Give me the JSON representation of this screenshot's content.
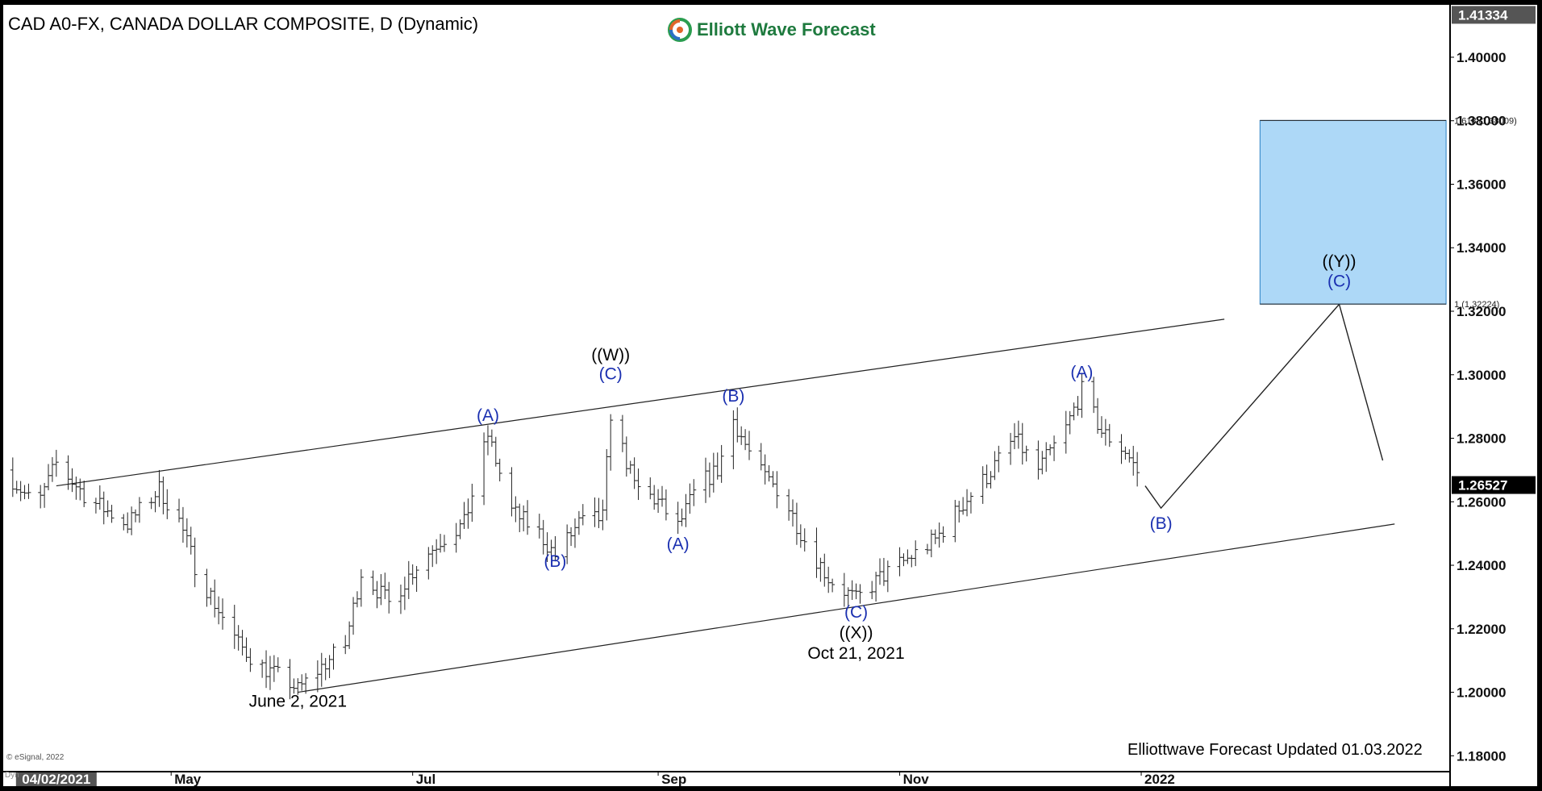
{
  "header": {
    "title": "CAD A0-FX, CANADA DOLLAR COMPOSITE, D (Dynamic)",
    "brand": "Elliott Wave Forecast",
    "brand_icon": "elliott-wave-logo-icon"
  },
  "footer": {
    "note": "Elliottwave Forecast Updated 01.03.2022",
    "copyright": "© eSignal, 2022",
    "dyn_label": "Dyn"
  },
  "colors": {
    "wave_label_blue": "#1a2fb0",
    "wave_label_black": "#000000",
    "target_box": "#add8f7",
    "target_box_border": "#2a7fc4",
    "last_price_bg": "#000000",
    "axis_label_bg": "#555555"
  },
  "chart_data": {
    "type": "ohlc",
    "symbol": "CAD A0-FX",
    "timeframe": "D",
    "x_start": "2021-03-20",
    "x_end": "2022-03-20",
    "ylim": [
      1.175,
      1.4165
    ],
    "grid": false,
    "y_ticks": [
      1.18,
      1.2,
      1.22,
      1.24,
      1.26,
      1.28,
      1.3,
      1.32,
      1.34,
      1.36,
      1.38,
      1.4
    ],
    "y_tick_labels": [
      "1.18000",
      "1.20000",
      "1.22000",
      "1.24000",
      "1.26000",
      "1.28000",
      "1.30000",
      "1.32000",
      "1.34000",
      "1.36000",
      "1.38000",
      "1.40000"
    ],
    "price_markers": [
      {
        "label": "1.41334",
        "value": 1.41334,
        "style": "axis"
      },
      {
        "label": "1.26527",
        "value": 1.26527,
        "style": "last"
      }
    ],
    "x_ticks": [
      {
        "date": "2021-04-02",
        "label": "04/02/2021",
        "highlight": true
      },
      {
        "date": "2021-05-01",
        "label": "May"
      },
      {
        "date": "2021-07-01",
        "label": "Jul"
      },
      {
        "date": "2021-09-01",
        "label": "Sep"
      },
      {
        "date": "2021-11-01",
        "label": "Nov"
      },
      {
        "date": "2022-01-01",
        "label": "2022"
      }
    ],
    "price_path": [
      [
        "2021-03-20",
        1.27
      ],
      [
        "2021-03-28",
        1.258
      ],
      [
        "2021-04-02",
        1.272
      ],
      [
        "2021-04-10",
        1.261
      ],
      [
        "2021-04-20",
        1.253
      ],
      [
        "2021-04-28",
        1.264
      ],
      [
        "2021-05-03",
        1.254
      ],
      [
        "2021-05-07",
        1.24
      ],
      [
        "2021-05-12",
        1.228
      ],
      [
        "2021-05-18",
        1.215
      ],
      [
        "2021-05-24",
        1.208
      ],
      [
        "2021-05-31",
        1.203
      ],
      [
        "2021-06-02",
        1.2007
      ],
      [
        "2021-06-08",
        1.208
      ],
      [
        "2021-06-14",
        1.215
      ],
      [
        "2021-06-18",
        1.238
      ],
      [
        "2021-06-25",
        1.228
      ],
      [
        "2021-07-02",
        1.24
      ],
      [
        "2021-07-08",
        1.248
      ],
      [
        "2021-07-14",
        1.253
      ],
      [
        "2021-07-20",
        1.281
      ],
      [
        "2021-07-26",
        1.257
      ],
      [
        "2021-08-02",
        1.25
      ],
      [
        "2021-08-06",
        1.243
      ],
      [
        "2021-08-12",
        1.253
      ],
      [
        "2021-08-18",
        1.255
      ],
      [
        "2021-08-20",
        1.288
      ],
      [
        "2021-08-26",
        1.265
      ],
      [
        "2021-09-01",
        1.26
      ],
      [
        "2021-09-06",
        1.252
      ],
      [
        "2021-09-11",
        1.265
      ],
      [
        "2021-09-16",
        1.27
      ],
      [
        "2021-09-20",
        1.286
      ],
      [
        "2021-09-26",
        1.27
      ],
      [
        "2021-10-02",
        1.263
      ],
      [
        "2021-10-08",
        1.248
      ],
      [
        "2021-10-14",
        1.236
      ],
      [
        "2021-10-21",
        1.229
      ],
      [
        "2021-10-27",
        1.236
      ],
      [
        "2021-11-03",
        1.242
      ],
      [
        "2021-11-10",
        1.248
      ],
      [
        "2021-11-16",
        1.258
      ],
      [
        "2021-11-23",
        1.268
      ],
      [
        "2021-11-30",
        1.28
      ],
      [
        "2021-12-06",
        1.27
      ],
      [
        "2021-12-13",
        1.283
      ],
      [
        "2021-12-17",
        1.295
      ],
      [
        "2021-12-22",
        1.282
      ],
      [
        "2021-12-28",
        1.276
      ],
      [
        "2022-01-02",
        1.265
      ]
    ],
    "projection": [
      [
        "2022-01-02",
        1.265
      ],
      [
        "2022-01-06",
        1.258
      ],
      [
        "2022-02-20",
        1.3222
      ],
      [
        "2022-03-03",
        1.273
      ]
    ],
    "channel_lines": [
      {
        "name": "upper",
        "from": [
          "2021-04-02",
          1.265
        ],
        "to": [
          "2022-01-22",
          1.3175
        ]
      },
      {
        "name": "lower",
        "from": [
          "2021-06-02",
          1.2
        ],
        "to": [
          "2022-03-06",
          1.253
        ]
      }
    ],
    "target_box": {
      "from_date": "2022-01-31",
      "to_date": "2022-03-19",
      "low": 1.32224,
      "high": 1.38009,
      "labels": [
        {
          "text": "1.618 (1.38009)",
          "value": 1.38009
        },
        {
          "text": "1 (1.32224)",
          "value": 1.32224
        }
      ]
    },
    "wave_labels": [
      {
        "text": "(A)",
        "date": "2021-07-20",
        "price": 1.2855,
        "color": "blue"
      },
      {
        "text": "(B)",
        "date": "2021-08-06",
        "price": 1.2395,
        "color": "blue"
      },
      {
        "text": "((W))",
        "date": "2021-08-20",
        "price": 1.3045,
        "color": "black"
      },
      {
        "text": "(C)",
        "date": "2021-08-20",
        "price": 1.2985,
        "color": "blue"
      },
      {
        "text": "(A)",
        "date": "2021-09-06",
        "price": 1.245,
        "color": "blue"
      },
      {
        "text": "(B)",
        "date": "2021-09-20",
        "price": 1.2915,
        "color": "blue"
      },
      {
        "text": "(C)",
        "date": "2021-10-21",
        "price": 1.2235,
        "color": "blue"
      },
      {
        "text": "((X))",
        "date": "2021-10-21",
        "price": 1.217,
        "color": "black"
      },
      {
        "text": "Oct 21, 2021",
        "date": "2021-10-21",
        "price": 1.2105,
        "color": "black"
      },
      {
        "text": "June 2, 2021",
        "date": "2021-06-02",
        "price": 1.1955,
        "color": "black"
      },
      {
        "text": "(A)",
        "date": "2021-12-17",
        "price": 1.299,
        "color": "blue"
      },
      {
        "text": "(B)",
        "date": "2022-01-06",
        "price": 1.2515,
        "color": "blue"
      },
      {
        "text": "((Y))",
        "date": "2022-02-20",
        "price": 1.334,
        "color": "black"
      },
      {
        "text": "(C)",
        "date": "2022-02-20",
        "price": 1.3277,
        "color": "blue"
      }
    ]
  }
}
